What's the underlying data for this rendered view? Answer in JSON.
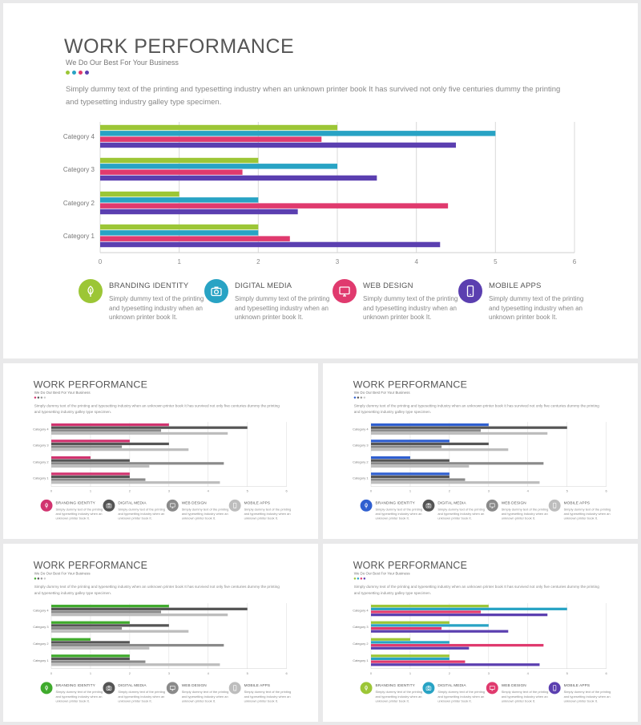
{
  "title": "WORK PERFORMANCE",
  "subtitle": "We Do Our Best For Your Business",
  "description": "Simply dummy text of the printing  and typesetting industry when  an unknown printer  book It has survived not only five centuries  dummy  the printing  and typesetting industry galley type specimen.",
  "features": [
    {
      "title": "BRANDING  IDENTITY",
      "text": "Simply dummy text of the printing and typesetting industry when an unknown printer book It.",
      "icon": "leaf-icon"
    },
    {
      "title": "DIGITAL  MEDIA",
      "text": "Simply dummy text of the printing and typesetting industry when an unknown printer book It.",
      "icon": "camera-icon"
    },
    {
      "title": "WEB DESIGN",
      "text": "Simply dummy text of the printing and typesetting industry when an unknown printer book It.",
      "icon": "monitor-icon"
    },
    {
      "title": "MOBILE APPS",
      "text": "Simply dummy text of the printing and typesetting industry when an unknown printer book It.",
      "icon": "phone-icon"
    }
  ],
  "chart_data": {
    "type": "bar",
    "orientation": "horizontal",
    "categories": [
      "Category 1",
      "Category 2",
      "Category 3",
      "Category 4"
    ],
    "x_ticks": [
      0,
      1,
      2,
      3,
      4,
      5,
      6
    ],
    "xlim": [
      0,
      6
    ],
    "grid": true,
    "series": [
      {
        "values": [
          2.0,
          1.0,
          2.0,
          3.0
        ]
      },
      {
        "values": [
          2.0,
          2.0,
          3.0,
          5.0
        ]
      },
      {
        "values": [
          2.4,
          4.4,
          1.8,
          2.8
        ]
      },
      {
        "values": [
          4.3,
          2.5,
          3.5,
          4.5
        ]
      }
    ]
  },
  "themes": [
    {
      "dots": [
        "#9cc636",
        "#28a3c4",
        "#e03a6e",
        "#5b3fb0"
      ],
      "series": [
        "#9cc636",
        "#28a3c4",
        "#e03a6e",
        "#5b3fb0"
      ],
      "icons": [
        "#9cc636",
        "#28a3c4",
        "#e03a6e",
        "#5b3fb0"
      ]
    },
    {
      "dots": [
        "#d1336f",
        "#555555",
        "#999999",
        "#cccccc"
      ],
      "series": [
        "#d1336f",
        "#555555",
        "#8a8a8a",
        "#bdbdbd"
      ],
      "icons": [
        "#d1336f",
        "#555555",
        "#8a8a8a",
        "#bdbdbd"
      ]
    },
    {
      "dots": [
        "#2f5fd0",
        "#555555",
        "#999999",
        "#cccccc"
      ],
      "series": [
        "#2f5fd0",
        "#555555",
        "#8a8a8a",
        "#bdbdbd"
      ],
      "icons": [
        "#2f5fd0",
        "#555555",
        "#8a8a8a",
        "#bdbdbd"
      ]
    },
    {
      "dots": [
        "#3faa2c",
        "#555555",
        "#999999",
        "#cccccc"
      ],
      "series": [
        "#3faa2c",
        "#555555",
        "#8a8a8a",
        "#bdbdbd"
      ],
      "icons": [
        "#3faa2c",
        "#555555",
        "#8a8a8a",
        "#bdbdbd"
      ]
    },
    {
      "dots": [
        "#9cc636",
        "#28a3c4",
        "#e03a6e",
        "#5b3fb0"
      ],
      "series": [
        "#9cc636",
        "#28a3c4",
        "#e03a6e",
        "#5b3fb0"
      ],
      "icons": [
        "#9cc636",
        "#28a3c4",
        "#e03a6e",
        "#5b3fb0"
      ]
    }
  ]
}
